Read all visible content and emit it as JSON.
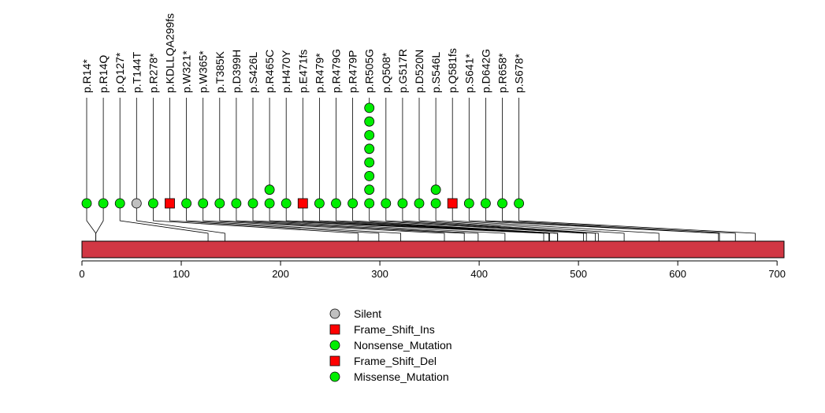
{
  "chart_data": {
    "type": "lollipop",
    "title": "",
    "xlabel": "",
    "ylabel": "",
    "protein_length": 707,
    "xlim": [
      0,
      707
    ],
    "x_ticks": [
      0,
      100,
      200,
      300,
      400,
      500,
      600,
      700
    ],
    "colors": {
      "domain_bar": "#d13744",
      "green": "#00ee00",
      "red": "#ff0000",
      "gray": "#c0c0c0"
    },
    "mutations": [
      {
        "label": "p.R14*",
        "position": 14,
        "type": "Nonsense_Mutation",
        "count": 1
      },
      {
        "label": "p.R14Q",
        "position": 14,
        "type": "Missense_Mutation",
        "count": 1
      },
      {
        "label": "p.Q127*",
        "position": 127,
        "type": "Nonsense_Mutation",
        "count": 1
      },
      {
        "label": "p.T144T",
        "position": 144,
        "type": "Silent",
        "count": 1
      },
      {
        "label": "p.R278*",
        "position": 278,
        "type": "Nonsense_Mutation",
        "count": 1
      },
      {
        "label": "p.KDLLQA299fs",
        "position": 299,
        "type": "Frame_Shift_Ins",
        "count": 1
      },
      {
        "label": "p.W321*",
        "position": 321,
        "type": "Nonsense_Mutation",
        "count": 1
      },
      {
        "label": "p.W365*",
        "position": 365,
        "type": "Nonsense_Mutation",
        "count": 1
      },
      {
        "label": "p.T385K",
        "position": 385,
        "type": "Missense_Mutation",
        "count": 1
      },
      {
        "label": "p.D399H",
        "position": 399,
        "type": "Missense_Mutation",
        "count": 1
      },
      {
        "label": "p.S426L",
        "position": 426,
        "type": "Missense_Mutation",
        "count": 1
      },
      {
        "label": "p.R465C",
        "position": 465,
        "type": "Missense_Mutation",
        "count": 2
      },
      {
        "label": "p.H470Y",
        "position": 470,
        "type": "Missense_Mutation",
        "count": 1
      },
      {
        "label": "p.E471fs",
        "position": 471,
        "type": "Frame_Shift_Del",
        "count": 1
      },
      {
        "label": "p.R479*",
        "position": 479,
        "type": "Nonsense_Mutation",
        "count": 1
      },
      {
        "label": "p.R479G",
        "position": 479,
        "type": "Missense_Mutation",
        "count": 1
      },
      {
        "label": "p.R479P",
        "position": 479,
        "type": "Missense_Mutation",
        "count": 1
      },
      {
        "label": "p.R505G",
        "position": 505,
        "type": "Missense_Mutation",
        "count": 8
      },
      {
        "label": "p.Q508*",
        "position": 508,
        "type": "Nonsense_Mutation",
        "count": 1
      },
      {
        "label": "p.G517R",
        "position": 517,
        "type": "Missense_Mutation",
        "count": 1
      },
      {
        "label": "p.D520N",
        "position": 520,
        "type": "Missense_Mutation",
        "count": 1
      },
      {
        "label": "p.S546L",
        "position": 546,
        "type": "Missense_Mutation",
        "count": 2
      },
      {
        "label": "p.Q581fs",
        "position": 581,
        "type": "Frame_Shift_Del",
        "count": 1
      },
      {
        "label": "p.S641*",
        "position": 641,
        "type": "Nonsense_Mutation",
        "count": 1
      },
      {
        "label": "p.D642G",
        "position": 642,
        "type": "Missense_Mutation",
        "count": 1
      },
      {
        "label": "p.R658*",
        "position": 658,
        "type": "Nonsense_Mutation",
        "count": 1
      },
      {
        "label": "p.S678*",
        "position": 678,
        "type": "Nonsense_Mutation",
        "count": 1
      }
    ],
    "legend": [
      {
        "label": "Silent",
        "shape": "circle",
        "color": "#c0c0c0"
      },
      {
        "label": "Frame_Shift_Ins",
        "shape": "square",
        "color": "#ff0000"
      },
      {
        "label": "Nonsense_Mutation",
        "shape": "circle",
        "color": "#00ee00"
      },
      {
        "label": "Frame_Shift_Del",
        "shape": "square",
        "color": "#ff0000"
      },
      {
        "label": "Missense_Mutation",
        "shape": "circle",
        "color": "#00ee00"
      }
    ]
  }
}
